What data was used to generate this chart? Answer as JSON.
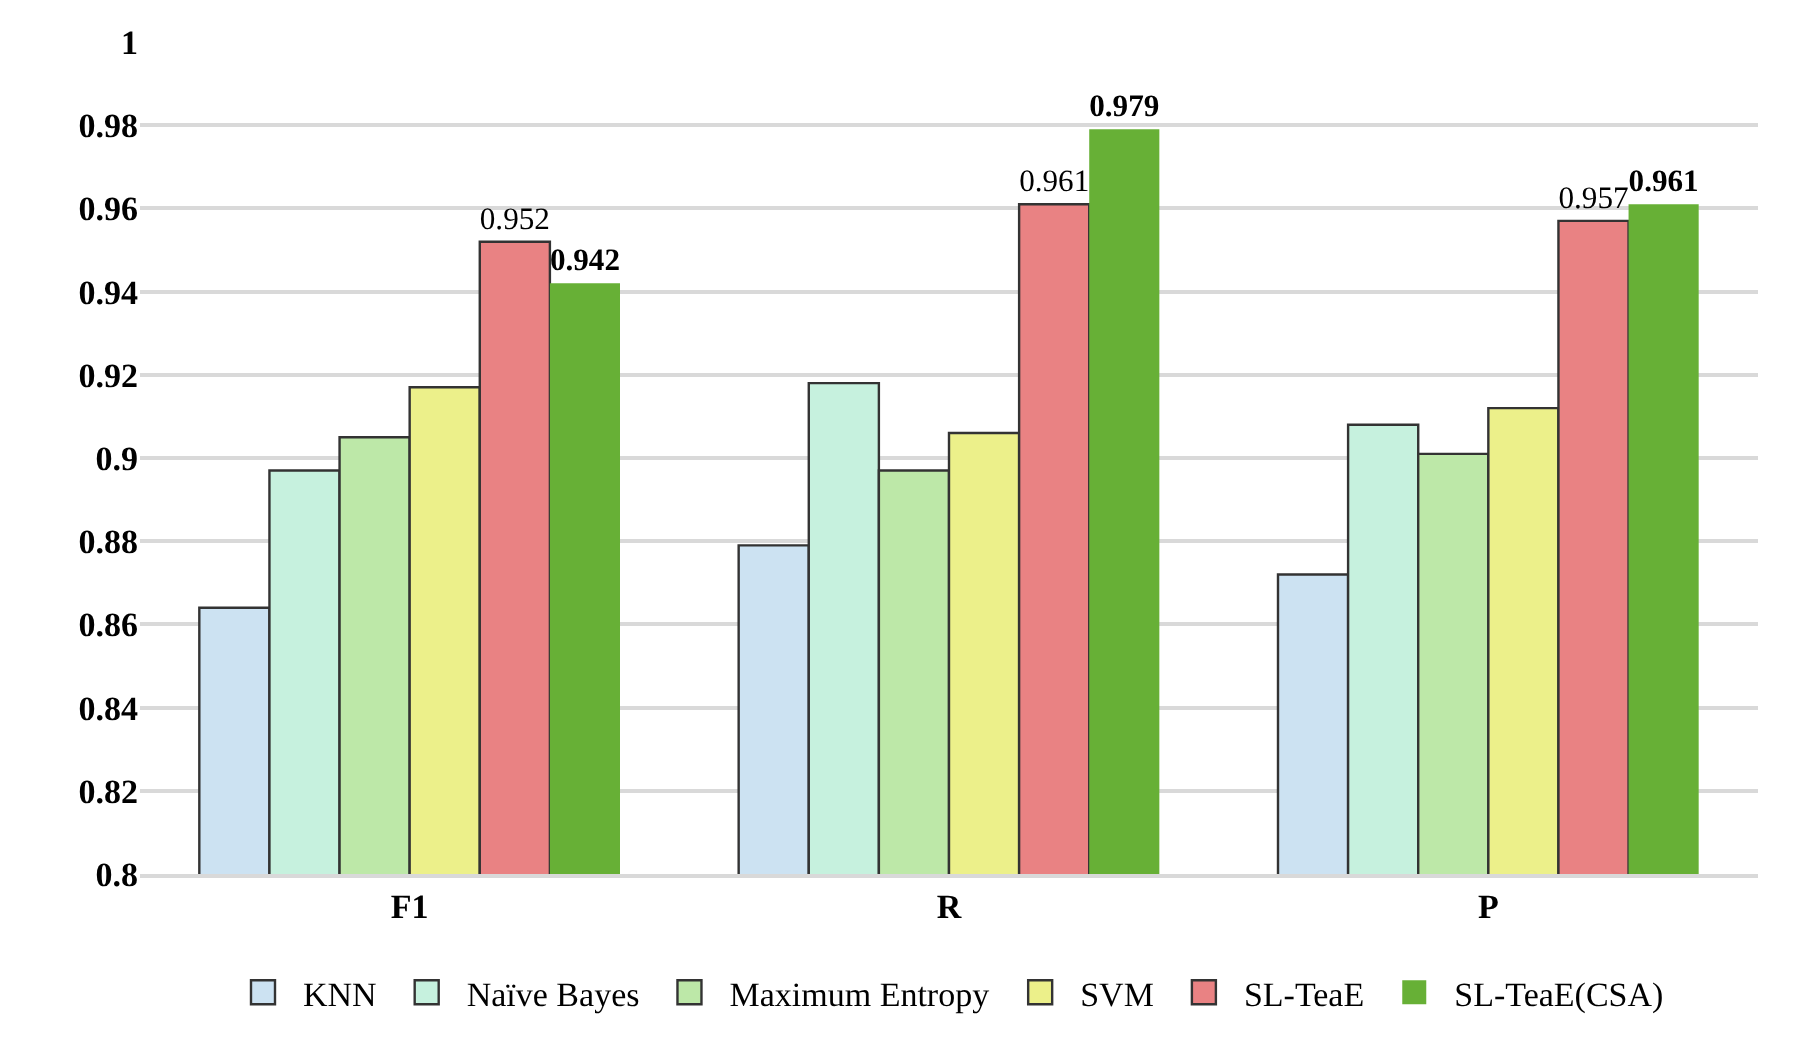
{
  "chart_data": {
    "type": "bar",
    "categories": [
      "F1",
      "R",
      "P"
    ],
    "series": [
      {
        "name": "KNN",
        "color": "#cce2f2",
        "values": [
          0.864,
          0.879,
          0.872
        ]
      },
      {
        "name": "Naïve Bayes",
        "color": "#c6f1de",
        "values": [
          0.897,
          0.918,
          0.908
        ]
      },
      {
        "name": "Maximum Entropy",
        "color": "#bde8a8",
        "values": [
          0.905,
          0.897,
          0.901
        ]
      },
      {
        "name": "SVM",
        "color": "#ecf08a",
        "values": [
          0.917,
          0.906,
          0.912
        ]
      },
      {
        "name": "SL-TeaE",
        "color": "#e98283",
        "values": [
          0.952,
          0.961,
          0.957
        ],
        "value_labels": [
          "0.952",
          "0.961",
          "0.957"
        ]
      },
      {
        "name": "SL-TeaE(CSA)",
        "color": "#67b036",
        "values": [
          0.942,
          0.979,
          0.961
        ],
        "value_labels": [
          "0.942",
          "0.979",
          "0.961"
        ]
      }
    ],
    "ylim": [
      0.8,
      1
    ],
    "yticks": [
      0.8,
      0.82,
      0.84,
      0.86,
      0.88,
      0.9,
      0.92,
      0.94,
      0.96,
      0.98,
      1
    ],
    "grid": "y",
    "legend": "bottom"
  }
}
